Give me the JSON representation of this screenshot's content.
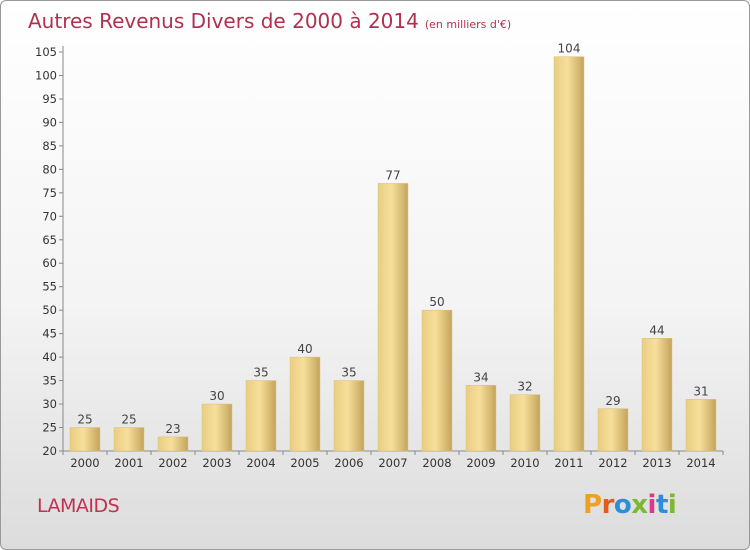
{
  "header": {
    "title": "Autres Revenus Divers de 2000 à 2014",
    "subtitle": "(en milliers d'€)"
  },
  "footer": {
    "commune": "LAMAIDS",
    "logo_text": "Proxiti"
  },
  "chart_data": {
    "type": "bar",
    "title": "Autres Revenus Divers de 2000 à 2014",
    "subtitle": "(en milliers d'€)",
    "categories": [
      "2000",
      "2001",
      "2002",
      "2003",
      "2004",
      "2005",
      "2006",
      "2007",
      "2008",
      "2009",
      "2010",
      "2011",
      "2012",
      "2013",
      "2014"
    ],
    "values": [
      25,
      25,
      23,
      30,
      35,
      40,
      35,
      77,
      50,
      34,
      32,
      104,
      29,
      44,
      31
    ],
    "ylim": [
      20,
      105
    ],
    "yticks": [
      20,
      25,
      30,
      35,
      40,
      45,
      50,
      55,
      60,
      65,
      70,
      75,
      80,
      85,
      90,
      95,
      100,
      105
    ],
    "grid": false,
    "colors": {
      "bar_light": "#f7df9b",
      "bar_dark": "#c4a45c",
      "title": "#b0314f",
      "commune": "#c0314f"
    }
  }
}
